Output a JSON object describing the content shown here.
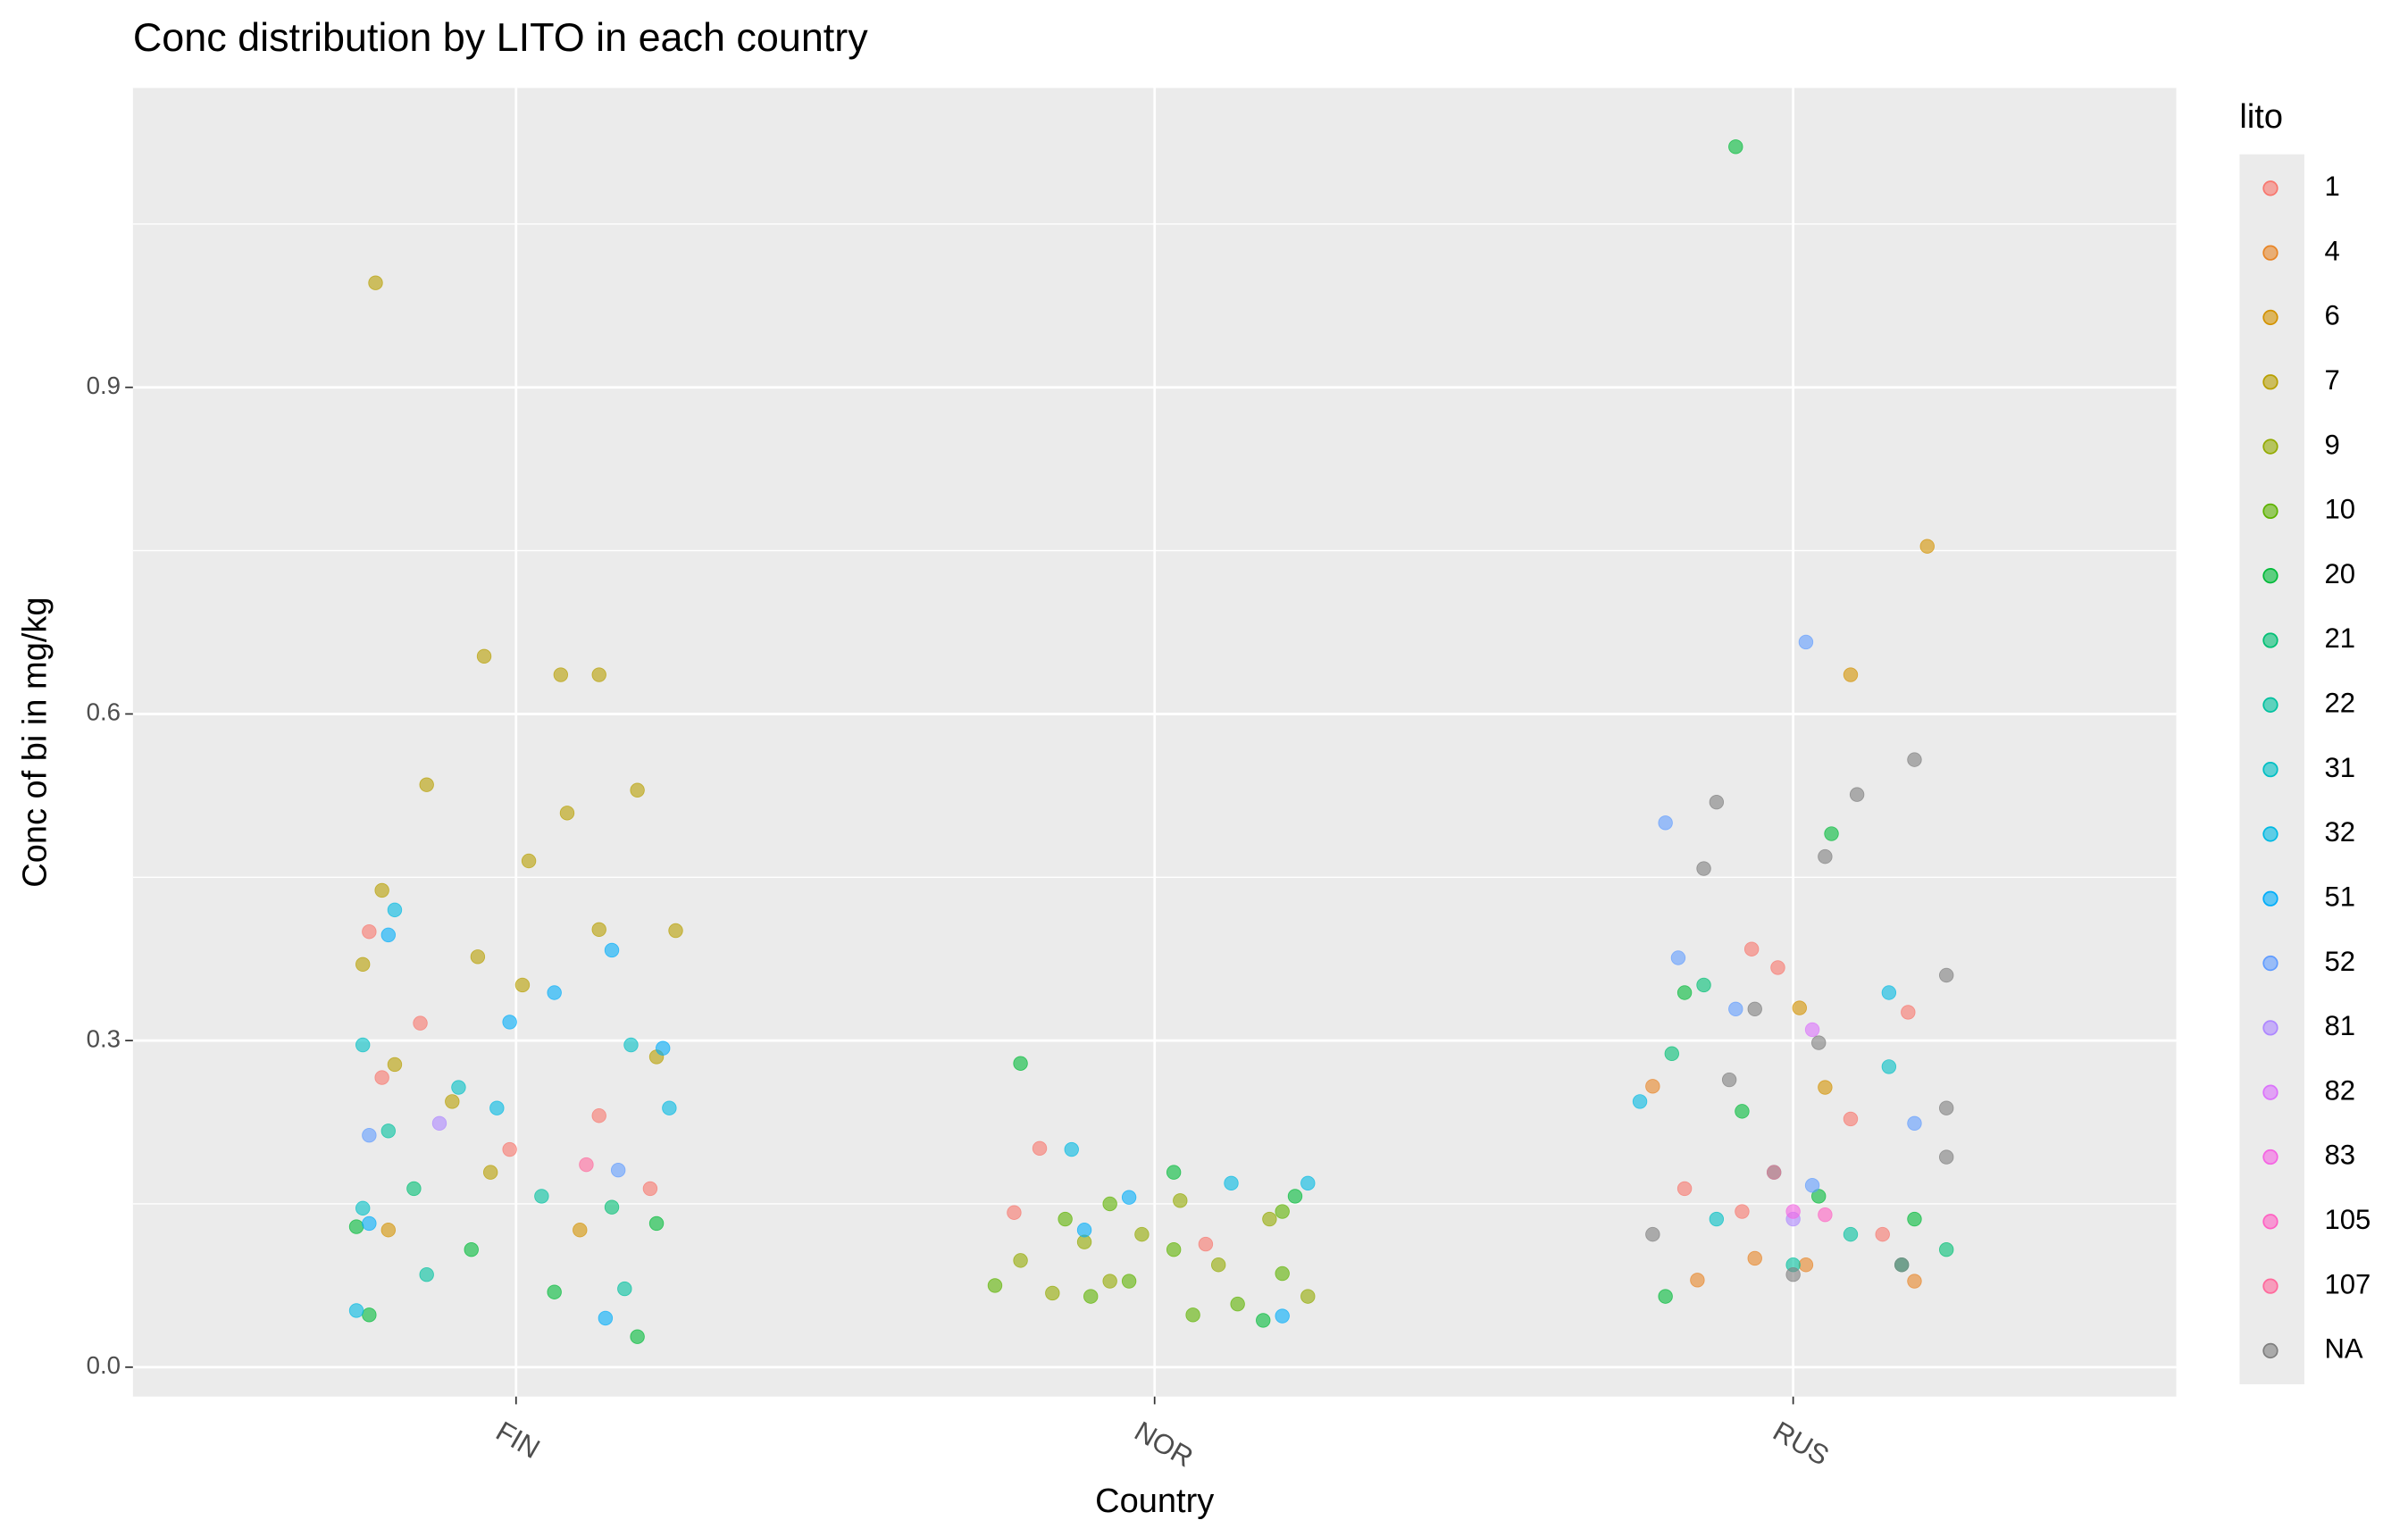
{
  "chart_data": {
    "type": "scatter",
    "title": "Conc distribution by LITO in each country",
    "x_label": "Country",
    "y_label": "Conc of  bi  in mg/kg",
    "legend_title": "lito",
    "legend": "right",
    "grid": true,
    "xlim": [
      0.4,
      3.6
    ],
    "xticks": [
      {
        "value": 1,
        "label": "FIN"
      },
      {
        "value": 2,
        "label": "NOR"
      },
      {
        "value": 3,
        "label": "RUS"
      }
    ],
    "ylim": [
      -0.027,
      1.175
    ],
    "yticks": [
      {
        "value": 0,
        "label": "0.0"
      },
      0.3,
      0.6,
      0.9
    ],
    "minor_yticks": [
      0.15,
      0.45,
      0.75,
      1.05
    ],
    "series": [
      {
        "name": "1",
        "color": "#F8766D",
        "x": [
          0.77,
          0.85,
          0.79,
          0.99,
          1.13,
          1.21,
          1.82,
          1.78,
          2.08,
          2.935,
          2.976,
          3.18,
          3.09,
          2.83,
          2.92,
          3.14
        ],
        "values": [
          0.4,
          0.316,
          0.266,
          0.2,
          0.231,
          0.164,
          0.201,
          0.142,
          0.113,
          0.384,
          0.367,
          0.326,
          0.228,
          0.164,
          0.143,
          0.122
        ]
      },
      {
        "name": "4",
        "color": "#E88526",
        "x": [
          2.78,
          3.02,
          3.19,
          2.94,
          2.85
        ],
        "values": [
          0.258,
          0.094,
          0.079,
          0.1,
          0.08
        ]
      },
      {
        "name": "6",
        "color": "#D39200",
        "x": [
          3.21,
          3.09,
          3.01,
          3.05,
          1.1,
          0.8
        ],
        "values": [
          0.754,
          0.636,
          0.33,
          0.257,
          0.126,
          0.126
        ]
      },
      {
        "name": "7",
        "color": "#B79F00",
        "x": [
          0.78,
          0.95,
          1.07,
          1.13,
          0.86,
          1.08,
          1.19,
          1.02,
          0.79,
          1.25,
          1.13,
          0.76,
          0.94,
          1.01,
          0.81,
          0.9,
          1.22,
          0.96
        ],
        "values": [
          0.996,
          0.653,
          0.636,
          0.636,
          0.535,
          0.509,
          0.53,
          0.465,
          0.438,
          0.401,
          0.402,
          0.37,
          0.377,
          0.351,
          0.278,
          0.244,
          0.285,
          0.179
        ]
      },
      {
        "name": "9",
        "color": "#93AA00",
        "x": [
          1.79,
          1.89,
          1.98,
          2.1,
          2.18,
          2.24,
          1.93,
          1.84,
          2.04
        ],
        "values": [
          0.098,
          0.115,
          0.122,
          0.094,
          0.136,
          0.065,
          0.079,
          0.068,
          0.153
        ]
      },
      {
        "name": "10",
        "color": "#5EB300",
        "x": [
          1.75,
          1.9,
          1.96,
          2.06,
          2.13,
          2.2,
          2.03,
          1.86,
          2.2,
          1.93
        ],
        "values": [
          0.075,
          0.065,
          0.079,
          0.048,
          0.058,
          0.086,
          0.108,
          0.136,
          0.143,
          0.15
        ]
      },
      {
        "name": "20",
        "color": "#00BA38",
        "x": [
          2.91,
          3.06,
          2.83,
          2.92,
          3.04,
          3.19,
          2.8,
          0.77,
          1.19,
          1.06,
          0.93,
          0.75,
          1.22,
          1.79,
          2.03,
          2.22,
          2.17
        ],
        "values": [
          1.121,
          0.49,
          0.344,
          0.235,
          0.157,
          0.136,
          0.065,
          0.048,
          0.028,
          0.069,
          0.108,
          0.129,
          0.132,
          0.279,
          0.179,
          0.157,
          0.043
        ]
      },
      {
        "name": "21",
        "color": "#00BF74",
        "x": [
          2.86,
          2.81,
          2.97,
          3.17,
          3.24,
          0.84,
          1.15
        ],
        "values": [
          0.351,
          0.288,
          0.179,
          0.094,
          0.108,
          0.164,
          0.147
        ]
      },
      {
        "name": "22",
        "color": "#00C19F",
        "x": [
          1.17,
          0.86,
          1.04,
          0.8,
          3.09,
          3.0
        ],
        "values": [
          0.072,
          0.085,
          0.157,
          0.217,
          0.122,
          0.094
        ]
      },
      {
        "name": "31",
        "color": "#00BFC4",
        "x": [
          0.76,
          1.18,
          0.91,
          0.76,
          3.15,
          2.88
        ],
        "values": [
          0.296,
          0.296,
          0.257,
          0.146,
          0.276,
          0.136
        ]
      },
      {
        "name": "32",
        "color": "#00B9E3",
        "x": [
          0.75,
          0.81,
          0.97,
          1.24,
          1.87,
          2.12,
          2.24,
          3.15,
          2.76
        ],
        "values": [
          0.052,
          0.42,
          0.238,
          0.238,
          0.2,
          0.169,
          0.169,
          0.344,
          0.244
        ]
      },
      {
        "name": "51",
        "color": "#00ADFA",
        "x": [
          0.8,
          1.15,
          1.06,
          0.99,
          1.23,
          1.14,
          0.77,
          1.89,
          2.2,
          1.96
        ],
        "values": [
          0.397,
          0.383,
          0.344,
          0.317,
          0.293,
          0.045,
          0.132,
          0.126,
          0.047,
          0.156
        ]
      },
      {
        "name": "52",
        "color": "#619CFF",
        "x": [
          3.02,
          2.8,
          2.82,
          2.91,
          3.03,
          3.19,
          0.77,
          1.16
        ],
        "values": [
          0.666,
          0.5,
          0.376,
          0.329,
          0.167,
          0.224,
          0.213,
          0.181
        ]
      },
      {
        "name": "81",
        "color": "#AE87FF",
        "x": [
          3.0,
          0.88
        ],
        "values": [
          0.136,
          0.224
        ]
      },
      {
        "name": "82",
        "color": "#DB72FB",
        "x": [
          3.03
        ],
        "values": [
          0.31
        ]
      },
      {
        "name": "83",
        "color": "#F564E3",
        "x": [
          3.0
        ],
        "values": [
          0.143
        ]
      },
      {
        "name": "105",
        "color": "#FF61C3",
        "x": [
          3.05
        ],
        "values": [
          0.14
        ]
      },
      {
        "name": "107",
        "color": "#FF699C",
        "x": [
          1.11,
          2.97
        ],
        "values": [
          0.186,
          0.179
        ]
      },
      {
        "name": "NA",
        "color": "#7F7F7F",
        "x": [
          3.19,
          2.88,
          3.1,
          3.05,
          2.86,
          3.24,
          2.94,
          3.04,
          2.9,
          3.24,
          2.78,
          3.17,
          3.0,
          3.24
        ],
        "values": [
          0.558,
          0.519,
          0.526,
          0.469,
          0.458,
          0.36,
          0.329,
          0.298,
          0.264,
          0.238,
          0.122,
          0.094,
          0.085,
          0.193
        ]
      }
    ]
  }
}
